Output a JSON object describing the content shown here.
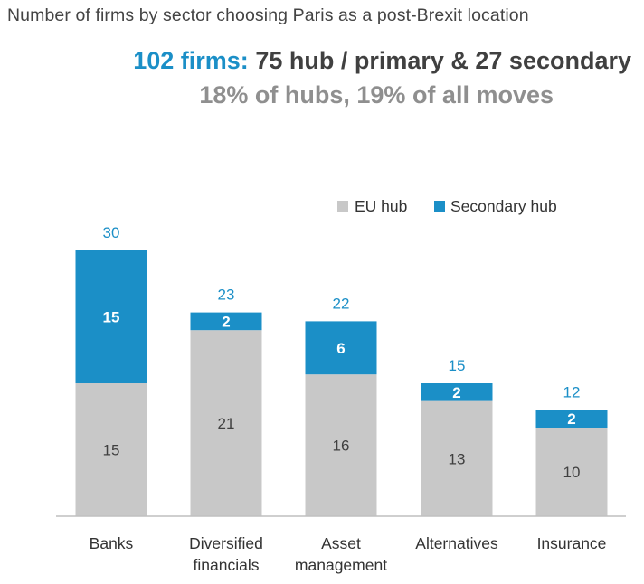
{
  "header": {
    "title": "Number of firms by sector choosing Paris as a post-Brexit location",
    "headline_accent": "102 firms:",
    "headline_rest": "75 hub / primary & 27 secondary",
    "subheadline": "18% of hubs, 19% of all moves"
  },
  "colors": {
    "eu_hub": "#c8c8c8",
    "secondary_hub": "#1b8fc7",
    "total_label": "#1b8fc7",
    "axis": "#bfbfbf",
    "label_dark": "#404040"
  },
  "chart_data": {
    "type": "bar",
    "stacked": true,
    "categories": [
      [
        "Banks"
      ],
      [
        "Diversified",
        "financials"
      ],
      [
        "Asset",
        "management"
      ],
      [
        "Alternatives"
      ],
      [
        "Insurance"
      ]
    ],
    "series": [
      {
        "name": "EU hub",
        "values": [
          15,
          21,
          16,
          13,
          10
        ]
      },
      {
        "name": "Secondary hub",
        "values": [
          15,
          2,
          6,
          2,
          2
        ]
      }
    ],
    "totals": [
      30,
      23,
      22,
      15,
      12
    ],
    "ylim": [
      0,
      30
    ],
    "grid": false,
    "legend": "top-right"
  }
}
